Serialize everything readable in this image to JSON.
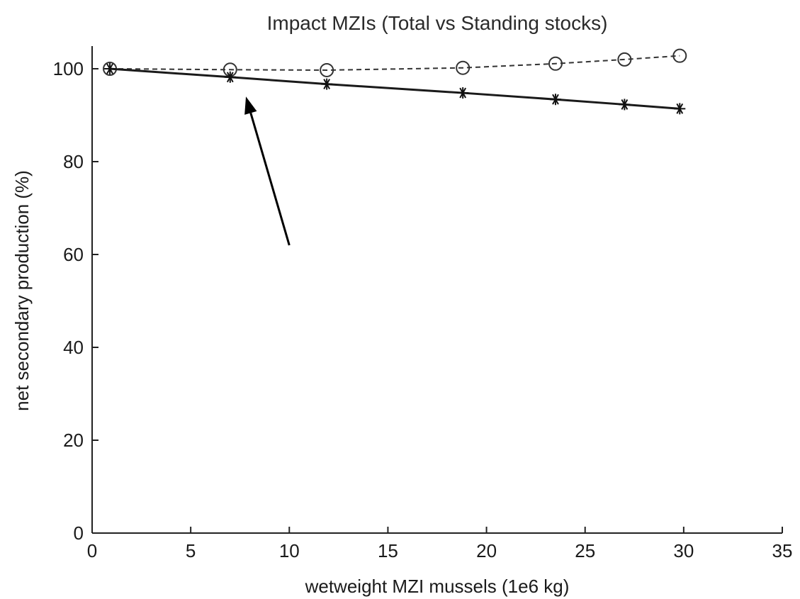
{
  "chart_data": {
    "type": "line",
    "title": "Impact MZIs (Total vs Standing stocks)",
    "xlabel": "wetweight MZI mussels (1e6 kg)",
    "ylabel": "net secondary production (%)",
    "xlim": [
      0,
      35
    ],
    "ylim": [
      0,
      105
    ],
    "x_ticks": [
      0,
      5,
      10,
      15,
      20,
      25,
      30,
      35
    ],
    "y_ticks": [
      0,
      20,
      40,
      60,
      80,
      100
    ],
    "grid": false,
    "x": [
      0.9,
      7.0,
      11.9,
      18.8,
      23.5,
      27.0,
      29.8
    ],
    "series": [
      {
        "marker": "circle",
        "line_style": "dashed",
        "values": [
          100.0,
          99.8,
          99.7,
          100.2,
          101.1,
          102.0,
          102.8
        ]
      },
      {
        "marker": "asterisk",
        "line_style": "solid",
        "values": [
          100.0,
          98.2,
          96.7,
          94.8,
          93.4,
          92.3,
          91.4
        ]
      }
    ],
    "annotations": [
      {
        "type": "arrow",
        "from": [
          10.0,
          62.0
        ],
        "to": [
          7.8,
          94.0
        ]
      }
    ]
  }
}
